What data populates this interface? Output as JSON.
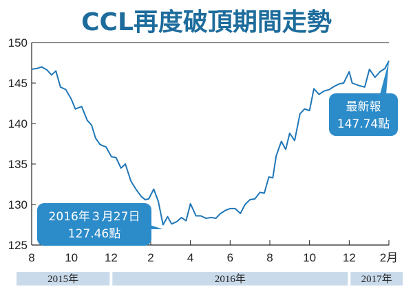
{
  "chart_data": {
    "type": "line",
    "title": "CCL再度破頂期間走勢",
    "ylim": [
      125,
      150
    ],
    "yticks": [
      125,
      130,
      135,
      140,
      145,
      150
    ],
    "xlim": [
      0,
      18
    ],
    "xticks": [
      {
        "x": 0,
        "label": "8"
      },
      {
        "x": 2,
        "label": "10"
      },
      {
        "x": 4,
        "label": "12"
      },
      {
        "x": 6,
        "label": "2"
      },
      {
        "x": 8,
        "label": "4"
      },
      {
        "x": 10,
        "label": "6"
      },
      {
        "x": 12,
        "label": "8"
      },
      {
        "x": 14,
        "label": "10"
      },
      {
        "x": 16,
        "label": "12"
      },
      {
        "x": 18,
        "label": "2月"
      }
    ],
    "year_bands": [
      {
        "label": "2015年",
        "from": 0,
        "to": 4
      },
      {
        "label": "2016年",
        "from": 4,
        "to": 16
      },
      {
        "label": "2017年",
        "from": 16,
        "to": 18
      }
    ],
    "series": [
      {
        "color": "#1f76b7",
        "points": [
          [
            0.0,
            146.7
          ],
          [
            0.27,
            146.8
          ],
          [
            0.5,
            147.0
          ],
          [
            0.78,
            146.6
          ],
          [
            1.0,
            146.0
          ],
          [
            1.22,
            146.5
          ],
          [
            1.45,
            144.5
          ],
          [
            1.72,
            144.2
          ],
          [
            2.0,
            143.0
          ],
          [
            2.2,
            141.8
          ],
          [
            2.52,
            142.1
          ],
          [
            2.8,
            140.4
          ],
          [
            3.02,
            139.8
          ],
          [
            3.22,
            138.2
          ],
          [
            3.45,
            137.4
          ],
          [
            3.75,
            137.1
          ],
          [
            4.02,
            135.9
          ],
          [
            4.25,
            135.8
          ],
          [
            4.5,
            134.5
          ],
          [
            4.72,
            135.0
          ],
          [
            5.0,
            132.9
          ],
          [
            5.25,
            131.9
          ],
          [
            5.52,
            131.0
          ],
          [
            5.72,
            130.6
          ],
          [
            5.9,
            130.7
          ],
          [
            6.15,
            131.9
          ],
          [
            6.38,
            130.4
          ],
          [
            6.62,
            127.5
          ],
          [
            6.85,
            128.5
          ],
          [
            7.05,
            127.6
          ],
          [
            7.32,
            127.9
          ],
          [
            7.55,
            128.4
          ],
          [
            7.78,
            128.0
          ],
          [
            8.0,
            130.1
          ],
          [
            8.28,
            128.6
          ],
          [
            8.52,
            128.6
          ],
          [
            8.78,
            128.3
          ],
          [
            9.05,
            128.4
          ],
          [
            9.28,
            128.3
          ],
          [
            9.52,
            128.9
          ],
          [
            9.78,
            129.3
          ],
          [
            10.0,
            129.5
          ],
          [
            10.25,
            129.5
          ],
          [
            10.52,
            128.9
          ],
          [
            10.75,
            130.0
          ],
          [
            11.0,
            130.6
          ],
          [
            11.25,
            130.7
          ],
          [
            11.5,
            131.5
          ],
          [
            11.72,
            131.4
          ],
          [
            11.95,
            133.4
          ],
          [
            12.15,
            133.3
          ],
          [
            12.32,
            136.0
          ],
          [
            12.58,
            137.8
          ],
          [
            12.8,
            136.8
          ],
          [
            13.0,
            138.8
          ],
          [
            13.25,
            137.9
          ],
          [
            13.52,
            141.2
          ],
          [
            13.75,
            141.8
          ],
          [
            14.0,
            141.6
          ],
          [
            14.22,
            144.3
          ],
          [
            14.48,
            143.6
          ],
          [
            14.72,
            144.0
          ],
          [
            15.0,
            144.2
          ],
          [
            15.25,
            144.6
          ],
          [
            15.5,
            144.9
          ],
          [
            15.72,
            145.0
          ],
          [
            16.0,
            146.4
          ],
          [
            16.15,
            145.0
          ],
          [
            16.48,
            144.7
          ],
          [
            16.78,
            144.5
          ],
          [
            17.02,
            146.7
          ],
          [
            17.3,
            145.7
          ],
          [
            17.55,
            146.4
          ],
          [
            17.8,
            146.8
          ],
          [
            18.0,
            147.74
          ]
        ]
      }
    ],
    "annotations": [
      {
        "line1": "最新報",
        "line2": "147.74點",
        "x": 18,
        "y": 147.74
      },
      {
        "line1": "2016年３月27日",
        "line2": "127.46點",
        "x": 6.62,
        "y": 127.46
      }
    ]
  }
}
